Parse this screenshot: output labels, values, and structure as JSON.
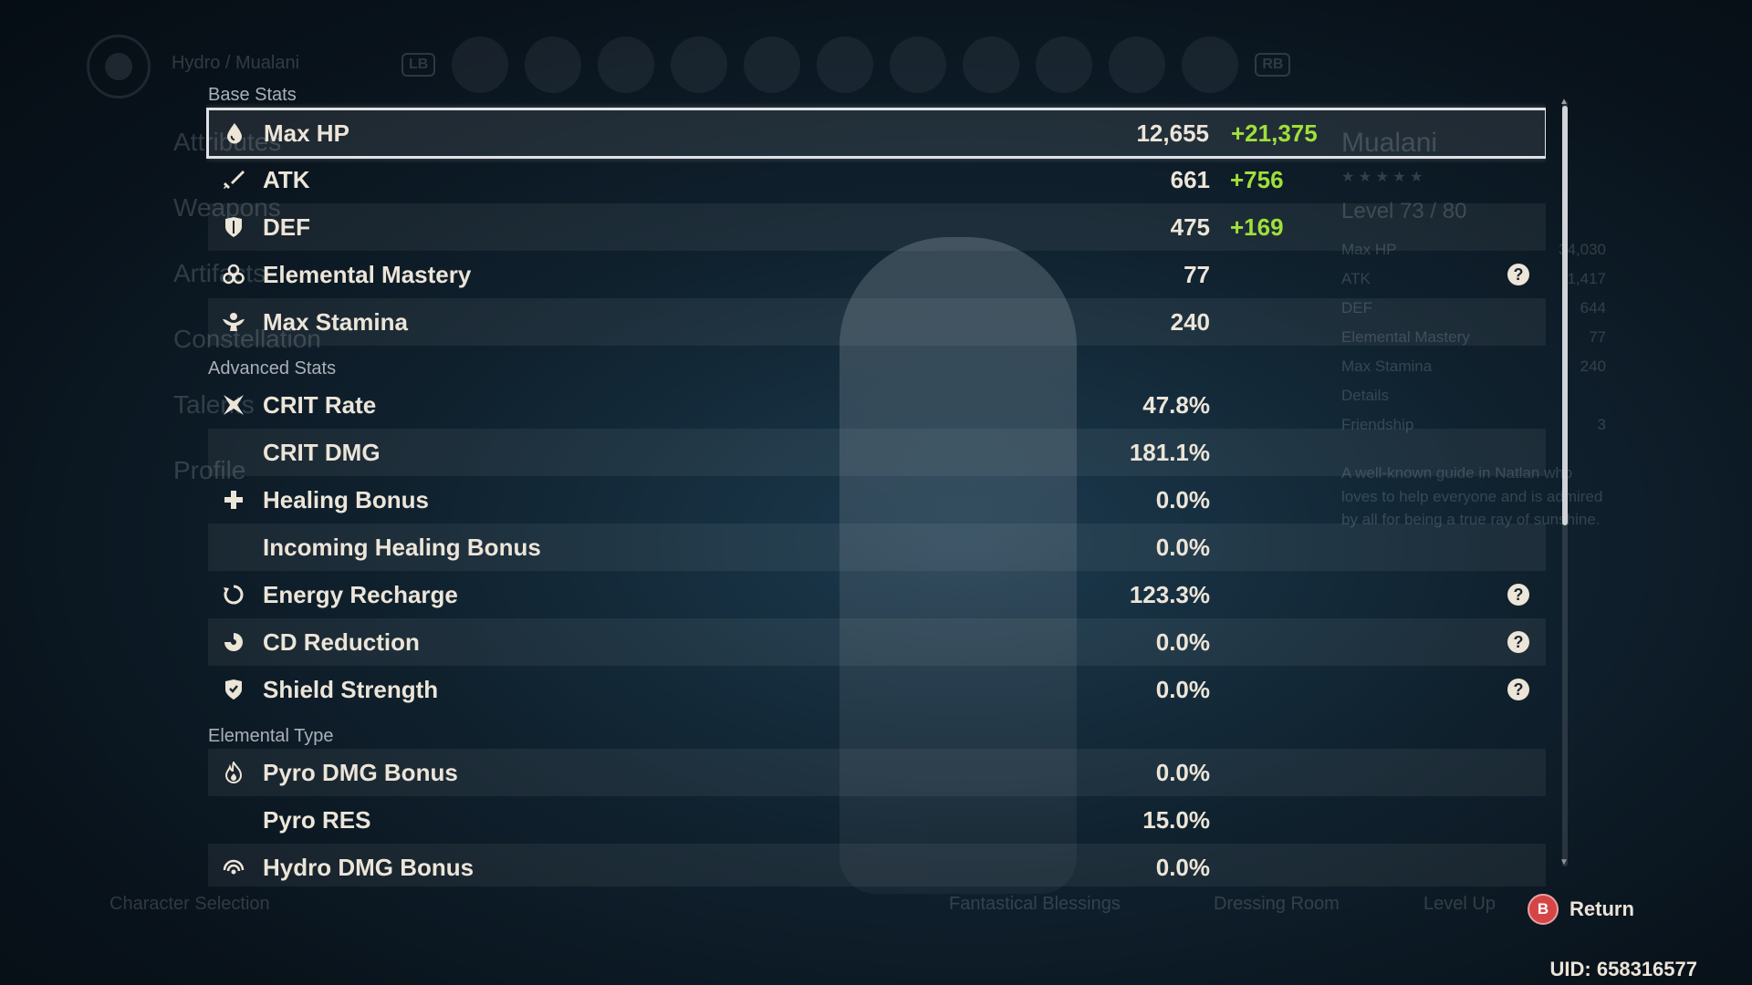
{
  "background": {
    "breadcrumb": "Hydro / Mualani",
    "lb": "LB",
    "rb": "RB",
    "menu": [
      "Attributes",
      "Weapons",
      "Artifacts",
      "Constellation",
      "Talents",
      "Profile"
    ],
    "side": {
      "name": "Mualani",
      "level": "Level 73 / 80",
      "stats": [
        {
          "label": "Max HP",
          "value": "34,030"
        },
        {
          "label": "ATK",
          "value": "1,417"
        },
        {
          "label": "DEF",
          "value": "644"
        },
        {
          "label": "Elemental Mastery",
          "value": "77"
        },
        {
          "label": "Max Stamina",
          "value": "240"
        }
      ],
      "details": "Details",
      "friendship": "Friendship",
      "friendship_level": "3",
      "description": "A well-known guide in Natlan who loves to help everyone and is admired by all for being a true ray of sunshine."
    },
    "footer": {
      "character_selection": "Character Selection",
      "fantastical_blessings": "Fantastical Blessings",
      "dressing_room": "Dressing Room",
      "level_up": "Level Up"
    }
  },
  "sections": {
    "base": "Base Stats",
    "advanced": "Advanced Stats",
    "elemental": "Elemental Type"
  },
  "stats": [
    {
      "label": "Max HP",
      "value": "12,655",
      "bonus": "+21,375",
      "icon": "hp-drop-icon"
    },
    {
      "label": "ATK",
      "value": "661",
      "bonus": "+756",
      "icon": "sword-icon"
    },
    {
      "label": "DEF",
      "value": "475",
      "bonus": "+169",
      "icon": "shield-icon"
    },
    {
      "label": "Elemental Mastery",
      "value": "77",
      "bonus": "",
      "icon": "elemental-mastery-icon"
    },
    {
      "label": "Max Stamina",
      "value": "240",
      "bonus": "",
      "icon": "stamina-icon"
    },
    {
      "label": "CRIT Rate",
      "value": "47.8%",
      "bonus": "",
      "icon": "crit-icon"
    },
    {
      "label": "CRIT DMG",
      "value": "181.1%",
      "bonus": "",
      "icon": ""
    },
    {
      "label": "Healing Bonus",
      "value": "0.0%",
      "bonus": "",
      "icon": "healing-cross-icon"
    },
    {
      "label": "Incoming Healing Bonus",
      "value": "0.0%",
      "bonus": "",
      "icon": ""
    },
    {
      "label": "Energy Recharge",
      "value": "123.3%",
      "bonus": "",
      "icon": "energy-recharge-icon"
    },
    {
      "label": "CD Reduction",
      "value": "0.0%",
      "bonus": "",
      "icon": "cd-reduction-icon"
    },
    {
      "label": "Shield Strength",
      "value": "0.0%",
      "bonus": "",
      "icon": "shield-strength-icon"
    },
    {
      "label": "Pyro DMG Bonus",
      "value": "0.0%",
      "bonus": "",
      "icon": "pyro-icon"
    },
    {
      "label": "Pyro RES",
      "value": "15.0%",
      "bonus": "",
      "icon": ""
    },
    {
      "label": "Hydro DMG Bonus",
      "value": "0.0%",
      "bonus": "",
      "icon": "hydro-icon"
    }
  ],
  "help_symbol": "?",
  "return": {
    "button": "B",
    "label": "Return"
  },
  "uid": "UID: 658316577"
}
